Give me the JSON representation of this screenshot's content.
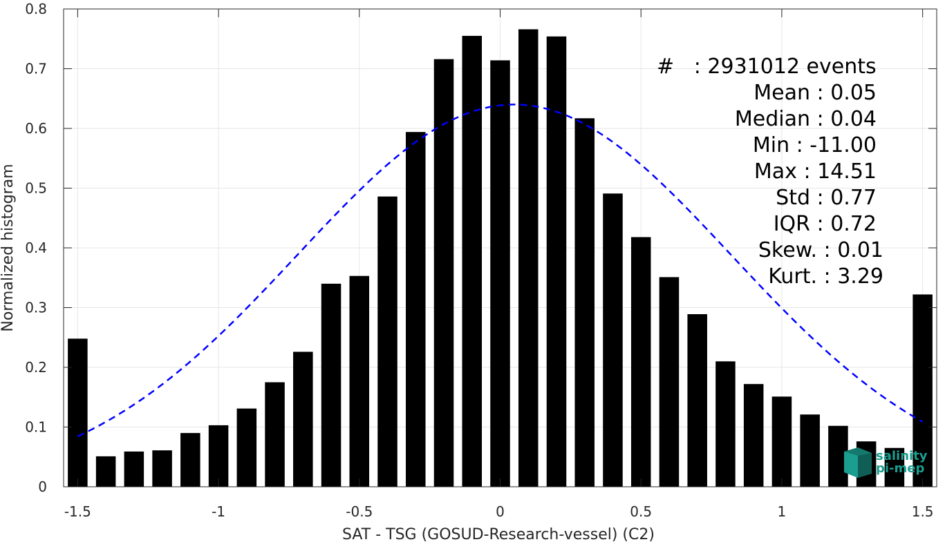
{
  "chart_data": {
    "type": "bar",
    "xlabel": "SAT - TSG (GOSUD-Research-vessel) (C2)",
    "ylabel": "Normalized histogram",
    "xlim": [
      -1.55,
      1.55
    ],
    "ylim": [
      0,
      0.8
    ],
    "xticks": [
      "-1.5",
      "-1",
      "-0.5",
      "0",
      "0.5",
      "1",
      "1.5"
    ],
    "xtick_values": [
      -1.5,
      -1,
      -0.5,
      0,
      0.5,
      1,
      1.5
    ],
    "yticks": [
      "0",
      "0.1",
      "0.2",
      "0.3",
      "0.4",
      "0.5",
      "0.6",
      "0.7",
      "0.8"
    ],
    "ytick_values": [
      0,
      0.1,
      0.2,
      0.3,
      0.4,
      0.5,
      0.6,
      0.7,
      0.8
    ],
    "grid": true,
    "bar_color": "#000000",
    "bar_width": 0.07,
    "x": [
      -1.5,
      -1.4,
      -1.3,
      -1.2,
      -1.1,
      -1.0,
      -0.9,
      -0.8,
      -0.7,
      -0.6,
      -0.5,
      -0.4,
      -0.3,
      -0.2,
      -0.1,
      0.0,
      0.1,
      0.2,
      0.3,
      0.4,
      0.5,
      0.6,
      0.7,
      0.8,
      0.9,
      1.0,
      1.1,
      1.2,
      1.3,
      1.4,
      1.5
    ],
    "values": [
      0.248,
      0.051,
      0.059,
      0.061,
      0.09,
      0.103,
      0.131,
      0.175,
      0.226,
      0.34,
      0.353,
      0.486,
      0.594,
      0.716,
      0.755,
      0.714,
      0.766,
      0.754,
      0.617,
      0.491,
      0.418,
      0.351,
      0.289,
      0.21,
      0.172,
      0.151,
      0.121,
      0.102,
      0.076,
      0.065,
      0.322
    ],
    "fit_curve": {
      "type": "gaussian",
      "mean": 0.05,
      "std": 0.77,
      "peak": 0.64,
      "range": [
        -1.5,
        1.5
      ],
      "color": "#0000ff",
      "style": "dashed"
    }
  },
  "stats": {
    "count": "#   : 2931012 events",
    "mean": "Mean : 0.05",
    "median": "Median : 0.04",
    "min": "Min : -11.00",
    "max": "Max : 14.51",
    "std": "Std : 0.77",
    "iqr": "IQR : 0.72",
    "skew": "Skew. : 0.01",
    "kurt": "Kurt. : 3.29"
  },
  "logo": {
    "line1": "salinity",
    "line2": "pi-mep",
    "color": "#1a9e8f"
  }
}
